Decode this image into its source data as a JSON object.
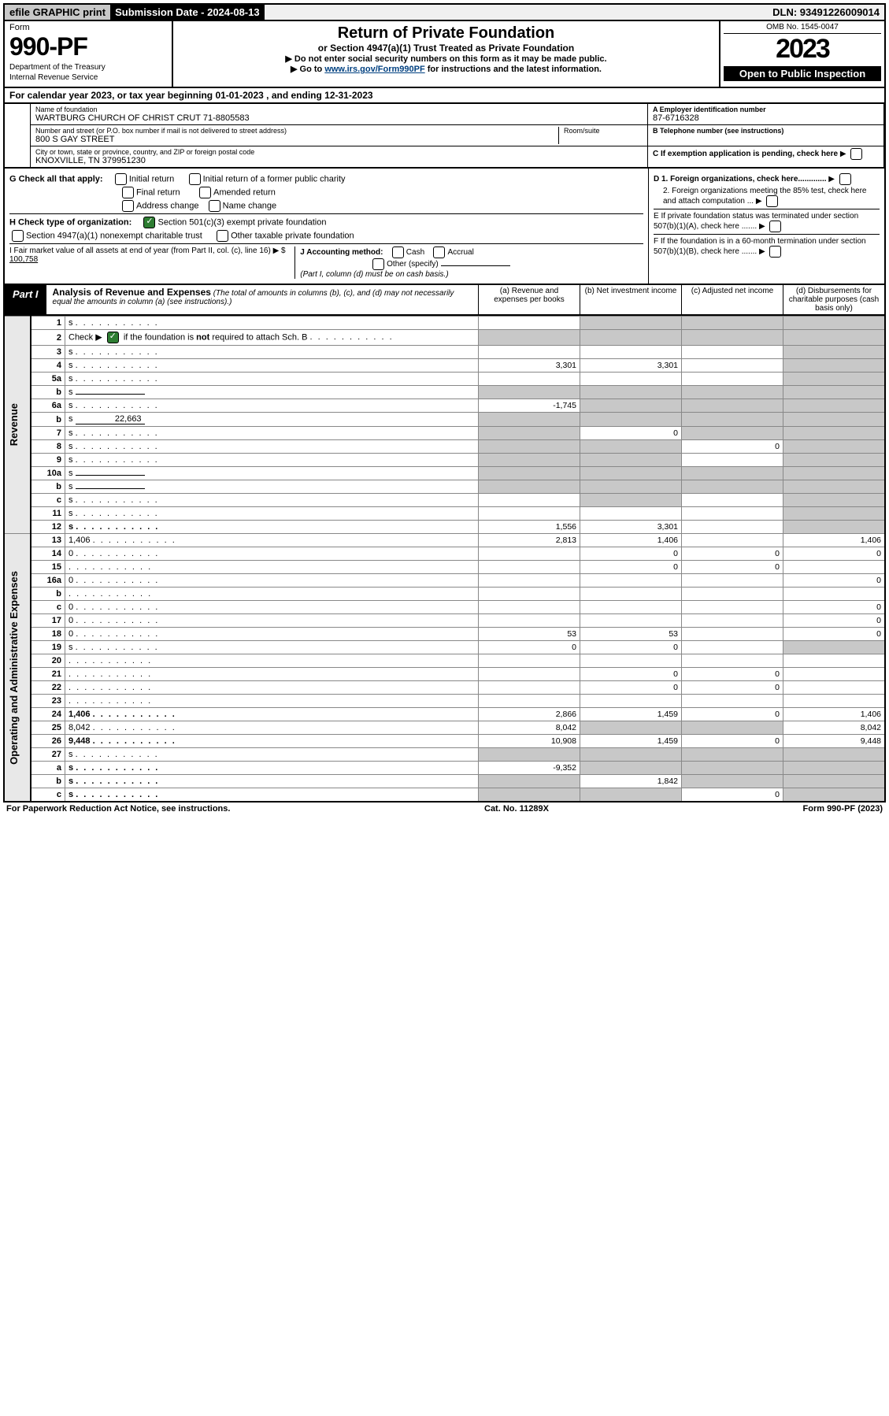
{
  "top": {
    "efile": "efile GRAPHIC print",
    "subdate_label": "Submission Date - 2024-08-13",
    "dln": "DLN: 93491226009014"
  },
  "header": {
    "form_word": "Form",
    "form_num": "990-PF",
    "dept": "Department of the Treasury",
    "irs": "Internal Revenue Service",
    "title": "Return of Private Foundation",
    "subtitle": "or Section 4947(a)(1) Trust Treated as Private Foundation",
    "note1": "Do not enter social security numbers on this form as it may be made public.",
    "note2_pre": "Go to ",
    "note2_link": "www.irs.gov/Form990PF",
    "note2_post": " for instructions and the latest information.",
    "omb": "OMB No. 1545-0047",
    "year": "2023",
    "open": "Open to Public Inspection"
  },
  "cal_year": "For calendar year 2023, or tax year beginning 01-01-2023                      , and ending 12-31-2023",
  "id": {
    "name_lbl": "Name of foundation",
    "name_val": "WARTBURG CHURCH OF CHRIST CRUT 71-8805583",
    "addr_lbl": "Number and street (or P.O. box number if mail is not delivered to street address)",
    "addr_val": "800 S GAY STREET",
    "room_lbl": "Room/suite",
    "city_lbl": "City or town, state or province, country, and ZIP or foreign postal code",
    "city_val": "KNOXVILLE, TN  379951230",
    "a_lbl": "A Employer identification number",
    "a_val": "87-6716328",
    "b_lbl": "B Telephone number (see instructions)",
    "c_lbl": "C If exemption application is pending, check here"
  },
  "checks": {
    "g_lbl": "G Check all that apply:",
    "g1": "Initial return",
    "g2": "Initial return of a former public charity",
    "g3": "Final return",
    "g4": "Amended return",
    "g5": "Address change",
    "g6": "Name change",
    "h_lbl": "H Check type of organization:",
    "h1": "Section 501(c)(3) exempt private foundation",
    "h2": "Section 4947(a)(1) nonexempt charitable trust",
    "h3": "Other taxable private foundation",
    "i_lbl": "I Fair market value of all assets at end of year (from Part II, col. (c), line 16) ▶ $",
    "i_val": "100,758",
    "j_lbl": "J Accounting method:",
    "j1": "Cash",
    "j2": "Accrual",
    "j3": "Other (specify)",
    "j_note": "(Part I, column (d) must be on cash basis.)",
    "d1": "D 1. Foreign organizations, check here.............",
    "d2": "2. Foreign organizations meeting the 85% test, check here and attach computation ...",
    "e": "E  If private foundation status was terminated under section 507(b)(1)(A), check here .......",
    "f": "F  If the foundation is in a 60-month termination under section 507(b)(1)(B), check here .......",
    "e_arrow": "▶",
    "f_arrow": "▶"
  },
  "part1": {
    "label": "Part I",
    "title": "Analysis of Revenue and Expenses",
    "sub": "(The total of amounts in columns (b), (c), and (d) may not necessarily equal the amounts in column (a) (see instructions).)",
    "col_a": "(a)   Revenue and expenses per books",
    "col_b": "(b)   Net investment income",
    "col_c": "(c)   Adjusted net income",
    "col_d": "(d)   Disbursements for charitable purposes (cash basis only)"
  },
  "side": {
    "revenue": "Revenue",
    "opex": "Operating and Administrative Expenses"
  },
  "rows": [
    {
      "n": "1",
      "d": "s",
      "a": "",
      "b": "s",
      "c": "s"
    },
    {
      "n": "2",
      "d": "s",
      "a": "s",
      "b": "s",
      "c": "s",
      "check": true
    },
    {
      "n": "3",
      "d": "s",
      "a": "",
      "b": "",
      "c": ""
    },
    {
      "n": "4",
      "d": "s",
      "a": "3,301",
      "b": "3,301",
      "c": ""
    },
    {
      "n": "5a",
      "d": "s",
      "a": "",
      "b": "",
      "c": ""
    },
    {
      "n": "b",
      "d": "s",
      "a": "s",
      "b": "s",
      "c": "s",
      "inline": true
    },
    {
      "n": "6a",
      "d": "s",
      "a": "-1,745",
      "b": "s",
      "c": "s"
    },
    {
      "n": "b",
      "d": "s",
      "a": "s",
      "b": "s",
      "c": "s",
      "inline": true,
      "inline_val": "22,663"
    },
    {
      "n": "7",
      "d": "s",
      "a": "s",
      "b": "0",
      "c": "s"
    },
    {
      "n": "8",
      "d": "s",
      "a": "s",
      "b": "s",
      "c": "0"
    },
    {
      "n": "9",
      "d": "s",
      "a": "s",
      "b": "s",
      "c": ""
    },
    {
      "n": "10a",
      "d": "s",
      "a": "s",
      "b": "s",
      "c": "s",
      "inline": true
    },
    {
      "n": "b",
      "d": "s",
      "a": "s",
      "b": "s",
      "c": "s",
      "inline": true
    },
    {
      "n": "c",
      "d": "s",
      "a": "",
      "b": "s",
      "c": ""
    },
    {
      "n": "11",
      "d": "s",
      "a": "",
      "b": "",
      "c": ""
    },
    {
      "n": "12",
      "d": "s",
      "a": "1,556",
      "b": "3,301",
      "c": "",
      "bold": true
    },
    {
      "n": "13",
      "d": "1,406",
      "a": "2,813",
      "b": "1,406",
      "c": ""
    },
    {
      "n": "14",
      "d": "0",
      "a": "",
      "b": "0",
      "c": "0"
    },
    {
      "n": "15",
      "d": "",
      "a": "",
      "b": "0",
      "c": "0"
    },
    {
      "n": "16a",
      "d": "0",
      "a": "",
      "b": "",
      "c": ""
    },
    {
      "n": "b",
      "d": "",
      "a": "",
      "b": "",
      "c": ""
    },
    {
      "n": "c",
      "d": "0",
      "a": "",
      "b": "",
      "c": ""
    },
    {
      "n": "17",
      "d": "0",
      "a": "",
      "b": "",
      "c": ""
    },
    {
      "n": "18",
      "d": "0",
      "a": "53",
      "b": "53",
      "c": ""
    },
    {
      "n": "19",
      "d": "s",
      "a": "0",
      "b": "0",
      "c": ""
    },
    {
      "n": "20",
      "d": "",
      "a": "",
      "b": "",
      "c": ""
    },
    {
      "n": "21",
      "d": "",
      "a": "",
      "b": "0",
      "c": "0"
    },
    {
      "n": "22",
      "d": "",
      "a": "",
      "b": "0",
      "c": "0"
    },
    {
      "n": "23",
      "d": "",
      "a": "",
      "b": "",
      "c": ""
    },
    {
      "n": "24",
      "d": "1,406",
      "a": "2,866",
      "b": "1,459",
      "c": "0",
      "bold": true
    },
    {
      "n": "25",
      "d": "8,042",
      "a": "8,042",
      "b": "s",
      "c": "s"
    },
    {
      "n": "26",
      "d": "9,448",
      "a": "10,908",
      "b": "1,459",
      "c": "0",
      "bold": true
    },
    {
      "n": "27",
      "d": "s",
      "a": "s",
      "b": "s",
      "c": "s"
    },
    {
      "n": "a",
      "d": "s",
      "a": "-9,352",
      "b": "s",
      "c": "s",
      "bold": true
    },
    {
      "n": "b",
      "d": "s",
      "a": "s",
      "b": "1,842",
      "c": "s",
      "bold": true
    },
    {
      "n": "c",
      "d": "s",
      "a": "s",
      "b": "s",
      "c": "0",
      "bold": true
    }
  ],
  "footer": {
    "left": "For Paperwork Reduction Act Notice, see instructions.",
    "mid": "Cat. No. 11289X",
    "right": "Form 990-PF (2023)"
  }
}
